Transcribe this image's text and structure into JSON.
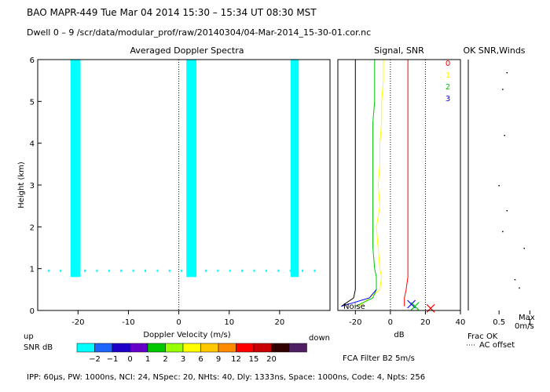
{
  "header": {
    "line1": "BAO  MAPR-449  Tue Mar 04 2014 15:30 – 15:34 UT 08:30 MST",
    "line2": "Dwell  0 –  9   /scr/data/modular_prof/raw/20140304/04-Mar-2014_15-30-01.cor.nc"
  },
  "footer": {
    "params": "IPP: 60μs,  PW: 1000ns,  NCI: 24,  NSpec: 20, NHts: 40,  Dly: 1333ns,  Space: 1000ns,  Code: 4,  Npts: 256",
    "filter": "FCA Filter B2  5m/s"
  },
  "colors": {
    "spectra": "#00ffff",
    "snr_scale": [
      "#00ffff",
      "#1e64ff",
      "#1e00c8",
      "#6400c8",
      "#00c800",
      "#96ff00",
      "#ffff00",
      "#ffc800",
      "#ff8c00",
      "#ff0000",
      "#c80000",
      "#320000",
      "#501e64"
    ]
  },
  "chart_data": [
    {
      "id": "spectra",
      "type": "heatmap",
      "title": "Averaged Doppler Spectra",
      "xlabel": "Doppler Velocity (m/s)",
      "ylabel": "Height (km)",
      "xlim": [
        -28,
        30
      ],
      "ylim": [
        0,
        6
      ],
      "x_ticks": [
        -20,
        -10,
        0,
        10,
        20
      ],
      "y_ticks": [
        0,
        1,
        2,
        3,
        4,
        5,
        6
      ],
      "left_label": "up",
      "right_label": "down",
      "bands": [
        {
          "x_min": -21.5,
          "x_max": -19.5,
          "y_min": 0.8,
          "y_max": 6.0
        },
        {
          "x_min": 1.5,
          "x_max": 3.5,
          "y_min": 0.8,
          "y_max": 6.0
        },
        {
          "x_min": 22.2,
          "x_max": 23.8,
          "y_min": 0.8,
          "y_max": 6.0
        }
      ],
      "noise_row_km": 0.95
    },
    {
      "id": "signal",
      "type": "line",
      "title": "Signal, SNR",
      "xlabel": "dB",
      "xlim": [
        -30,
        40
      ],
      "ylim": [
        0,
        6
      ],
      "x_ticks": [
        -20,
        0,
        20,
        40
      ],
      "noise_label": "Noise",
      "legend": [
        "0",
        "1",
        "2",
        "3"
      ],
      "legend_colors": [
        "#ff0000",
        "#ffff00",
        "#00c800",
        "#0000ff"
      ],
      "heights": [
        0.1,
        0.3,
        0.5,
        0.8,
        1.0,
        1.5,
        2.0,
        2.5,
        3.0,
        3.5,
        4.0,
        4.5,
        5.0,
        5.5,
        6.0
      ],
      "series": [
        {
          "name": "noise",
          "color": "#000000",
          "values": [
            -28,
            -21,
            -20,
            -20,
            -20,
            -20,
            -20,
            -20,
            -20,
            -20,
            -20,
            -20,
            -20,
            -20,
            -20
          ]
        },
        {
          "name": "0",
          "color": "#ff0000",
          "values": [
            8,
            8,
            9,
            10,
            10,
            10,
            10,
            10,
            10,
            10,
            10,
            10,
            10,
            10,
            10
          ]
        },
        {
          "name": "1",
          "color": "#ffff00",
          "values": [
            -18,
            -12,
            -6,
            -5,
            -6,
            -7,
            -8,
            -6,
            -7,
            -6,
            -6,
            -5,
            -5,
            -4,
            -4
          ]
        },
        {
          "name": "2",
          "color": "#00c800",
          "values": [
            -20,
            -10,
            -8,
            -8,
            -9,
            -10,
            -10,
            -10,
            -10,
            -10,
            -10,
            -10,
            -9,
            -9,
            -9
          ]
        },
        {
          "name": "3",
          "color": "#0000ff",
          "values": [
            -28,
            -12,
            -8
          ]
        }
      ],
      "markers": [
        {
          "x": 12,
          "y": 0.15,
          "color": "#0000ff"
        },
        {
          "x": 14,
          "y": 0.1,
          "color": "#00c800"
        },
        {
          "x": 23,
          "y": 0.05,
          "color": "#ff0000"
        }
      ]
    },
    {
      "id": "winds",
      "type": "scatter",
      "title": "OK SNR,Winds",
      "xlim": [
        0,
        1.2
      ],
      "ylim": [
        0,
        6
      ],
      "x_ticks": [
        0.5,
        1.0
      ],
      "x_tick_labels": [
        "0.5",
        "1"
      ],
      "footnotes": [
        "Frac OK",
        "AC offset"
      ],
      "max_label": [
        "Max",
        "0m/s"
      ],
      "points": [
        {
          "x": 0.62,
          "y": 5.7
        },
        {
          "x": 0.55,
          "y": 5.3
        },
        {
          "x": 0.58,
          "y": 4.2
        },
        {
          "x": 0.49,
          "y": 3.0
        },
        {
          "x": 0.62,
          "y": 2.4
        },
        {
          "x": 0.55,
          "y": 1.9
        },
        {
          "x": 0.9,
          "y": 1.5
        },
        {
          "x": 0.75,
          "y": 0.75
        },
        {
          "x": 0.82,
          "y": 0.55
        }
      ]
    }
  ],
  "scale": {
    "label": "SNR dB",
    "values": [
      "−2",
      "−1",
      "0",
      "1",
      "2",
      "3",
      "6",
      "9",
      "12",
      "15",
      "20"
    ]
  }
}
